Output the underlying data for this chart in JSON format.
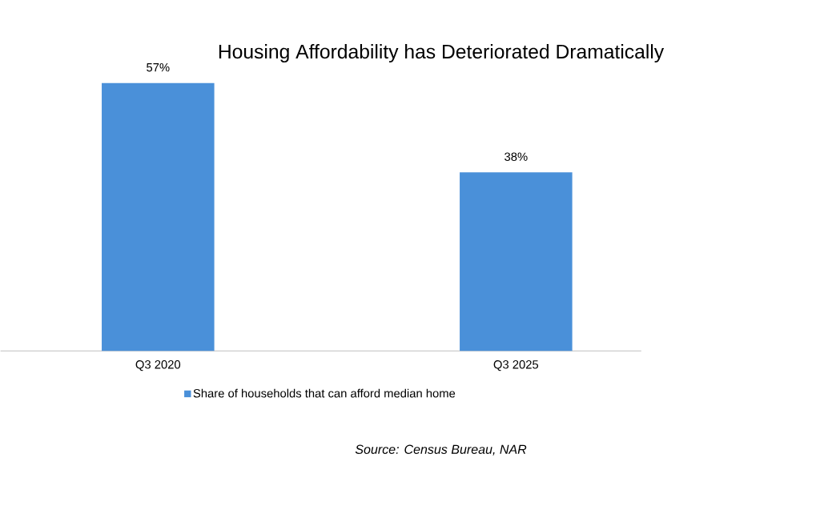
{
  "chart_data": {
    "type": "bar",
    "title": "Housing Affordability has Deteriorated Dramatically",
    "categories": [
      "Q3 2020",
      "Q3 2025"
    ],
    "series": [
      {
        "name": "Share of households that can afford median home",
        "color": "#4a90d9",
        "values": [
          57,
          38
        ],
        "value_labels": [
          "57%",
          "38%"
        ]
      }
    ],
    "legend": "bottom",
    "annotations": [
      "Source: Census Bureau, NAR"
    ]
  }
}
